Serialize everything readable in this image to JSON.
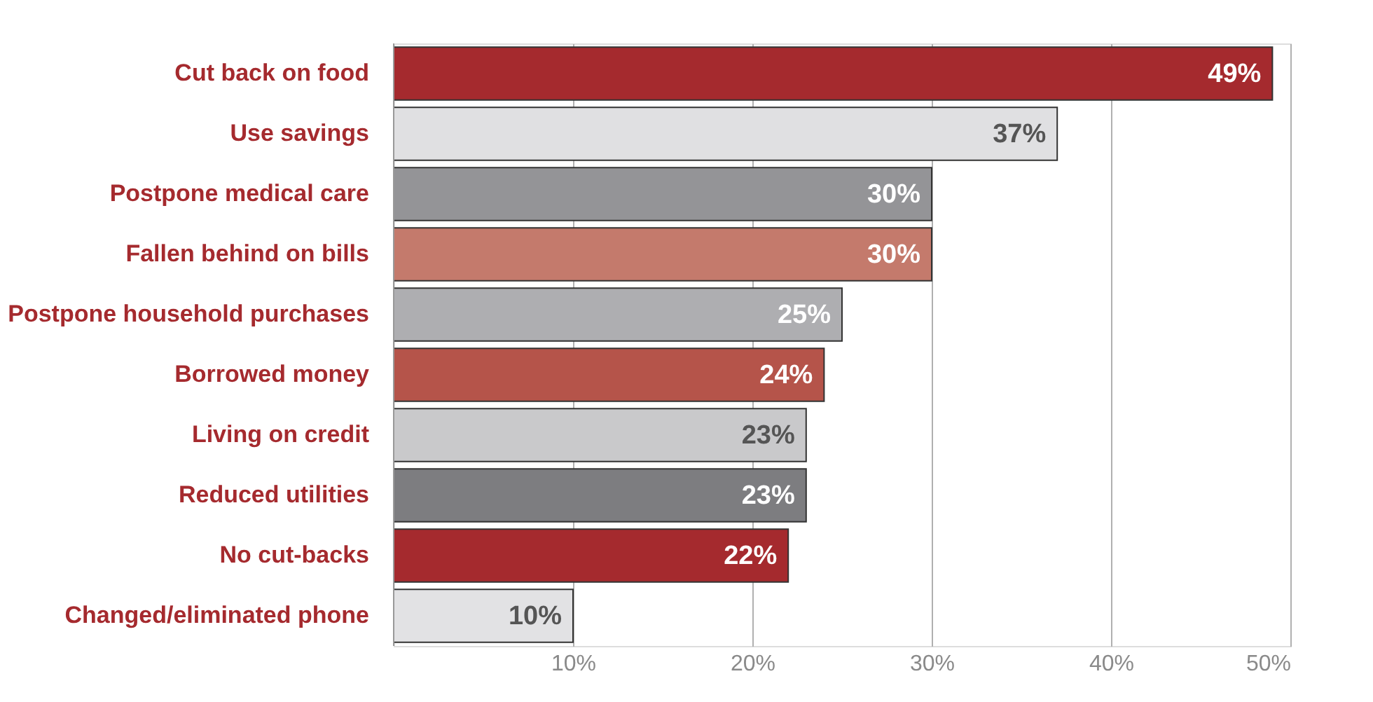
{
  "chart_data": {
    "type": "bar",
    "orientation": "horizontal",
    "categories": [
      "Cut back on food",
      "Use savings",
      "Postpone medical care",
      "Fallen behind on bills",
      "Postpone household purchases",
      "Borrowed money",
      "Living on credit",
      "Reduced utilities",
      "No cut-backs",
      "Changed/eliminated phone"
    ],
    "values": [
      49,
      37,
      30,
      30,
      25,
      24,
      23,
      23,
      22,
      10
    ],
    "colors": [
      "#a52a2e",
      "#e0e0e2",
      "#949497",
      "#c47a6c",
      "#aeaeb1",
      "#b5544a",
      "#c9c9cb",
      "#7d7d80",
      "#a52a2e",
      "#e2e2e4"
    ],
    "value_labels": [
      "49%",
      "37%",
      "30%",
      "30%",
      "25%",
      "24%",
      "23%",
      "23%",
      "22%",
      "10%"
    ],
    "xlim": [
      0,
      50
    ],
    "xticks": [
      {
        "value": 10,
        "label": "10%"
      },
      {
        "value": 20,
        "label": "20%"
      },
      {
        "value": 30,
        "label": "30%"
      },
      {
        "value": 40,
        "label": "40%"
      },
      {
        "value": 50,
        "label": "50%"
      }
    ],
    "grid": "x",
    "tick_labels": "x"
  }
}
